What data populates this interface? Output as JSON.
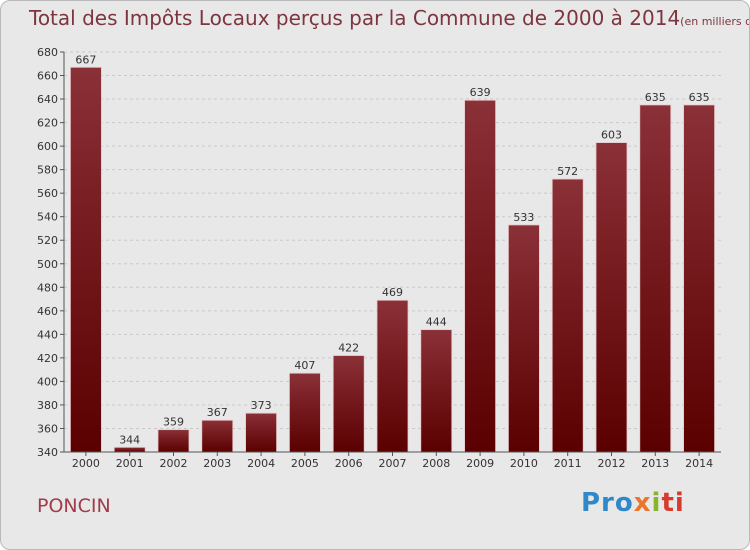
{
  "title": "Total des Impôts Locaux perçus par la Commune de 2000 à 2014",
  "unit": "(en milliers d'€)",
  "commune": "PONCIN",
  "logo": {
    "p1": "Pro",
    "p2": "x",
    "p3": "i",
    "p4": "ti"
  },
  "colors": {
    "bar_top": "#8a3037",
    "bar_bottom": "#5a0000",
    "accent": "#a23b4a"
  },
  "chart_data": {
    "type": "bar",
    "categories": [
      "2000",
      "2001",
      "2002",
      "2003",
      "2004",
      "2005",
      "2006",
      "2007",
      "2008",
      "2009",
      "2010",
      "2011",
      "2012",
      "2013",
      "2014"
    ],
    "values": [
      667,
      344,
      359,
      367,
      373,
      407,
      422,
      469,
      444,
      639,
      533,
      572,
      603,
      635,
      635
    ],
    "ylim": [
      340,
      680
    ],
    "yticks": [
      340,
      360,
      380,
      400,
      420,
      440,
      460,
      480,
      500,
      520,
      540,
      560,
      580,
      600,
      620,
      640,
      660,
      680
    ],
    "grid": true
  }
}
